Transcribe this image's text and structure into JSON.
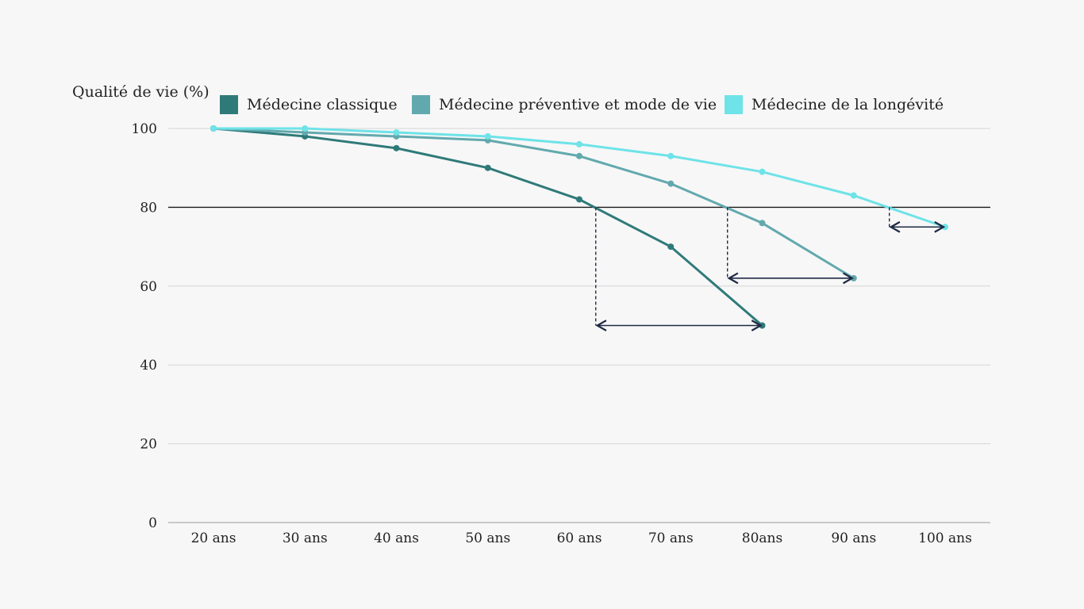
{
  "chart_data": {
    "type": "line",
    "ylabel": "Qualité de vie (%)",
    "xlabel": "",
    "categories": [
      "20 ans",
      "30 ans",
      "40 ans",
      "50 ans",
      "60 ans",
      "70 ans",
      "80ans",
      "90 ans",
      "100 ans"
    ],
    "ylim": [
      0,
      100
    ],
    "yticks": [
      0,
      20,
      40,
      60,
      80,
      100
    ],
    "grid": true,
    "legend_position": "top",
    "threshold": 80,
    "series": [
      {
        "name": "Médecine classique",
        "color": "#2f7a79",
        "values": [
          100,
          98,
          95,
          90,
          82,
          70,
          50,
          null,
          null
        ]
      },
      {
        "name": "Médecine préventive et mode de vie",
        "color": "#62a9ae",
        "values": [
          100,
          99,
          98,
          97,
          93,
          86,
          76,
          62,
          null
        ]
      },
      {
        "name": "Médecine de la longévité",
        "color": "#6ee3e8",
        "values": [
          100,
          100,
          99,
          98,
          96,
          93,
          89,
          83,
          75
        ]
      }
    ],
    "annotations": [
      {
        "type": "gain-arrow",
        "series": 0,
        "from_x": 4.18,
        "to_x": 6.0,
        "y": 50,
        "drop_from": 80
      },
      {
        "type": "gain-arrow",
        "series": 1,
        "from_x": 5.62,
        "to_x": 7.0,
        "y": 62,
        "drop_from": 80
      },
      {
        "type": "gain-arrow",
        "series": 2,
        "from_x": 7.39,
        "to_x": 8.0,
        "y": 75,
        "drop_from": 80
      }
    ]
  }
}
